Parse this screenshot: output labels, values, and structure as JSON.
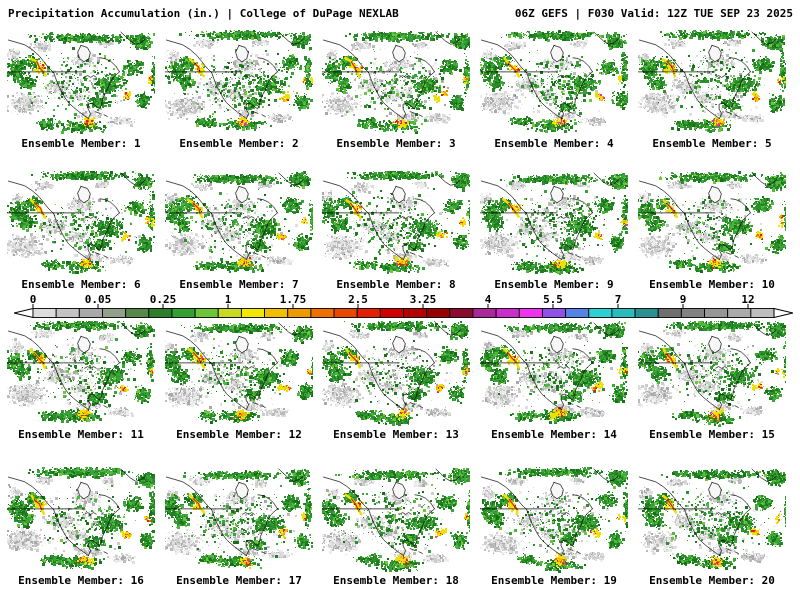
{
  "header": {
    "left": "Precipitation Accumulation (in.) | College of DuPage NEXLAB",
    "right": "06Z GEFS | F030 Valid: 12Z TUE SEP 23 2025"
  },
  "scale": {
    "labels": [
      "0",
      "0.05",
      "0.25",
      "1",
      "1.75",
      "2.5",
      "3.25",
      "4",
      "5.5",
      "7",
      "9",
      "12"
    ],
    "values": [
      0,
      0.05,
      0.25,
      1,
      1.75,
      2.5,
      3.25,
      4,
      5.5,
      7,
      9,
      12
    ],
    "colors": [
      "#dcdcdc",
      "#c3c3c3",
      "#a9a9a9",
      "#91a189",
      "#55884a",
      "#2d7d2d",
      "#33a033",
      "#70c437",
      "#cada20",
      "#f0e800",
      "#f0c000",
      "#f09800",
      "#ee7000",
      "#e84800",
      "#e02000",
      "#d00000",
      "#b40000",
      "#980000",
      "#8c0a30",
      "#aa2898",
      "#cc2ecc",
      "#ee32ee",
      "#9150e8",
      "#5584e6",
      "#2cd2d2",
      "#28bcbc",
      "#2b9090",
      "#6f6f6f",
      "#828282",
      "#969696",
      "#aaaaaa",
      "#bebebe"
    ],
    "arrow_fill": "#ffffff",
    "border": "#000000"
  },
  "map_palette": {
    "ocean": "#ffffff",
    "coast": "#000000",
    "grays": [
      "#ededed",
      "#dedede",
      "#cccccc",
      "#bbbbbb",
      "#a8a8a8"
    ],
    "greens": [
      "#167016",
      "#1f7d1f",
      "#2b8f2b",
      "#3aa33a",
      "#4eb83e",
      "#70c63c"
    ],
    "hot": [
      "#f0e000",
      "#f0b400",
      "#ee7000",
      "#e02000",
      "#e02ce0"
    ]
  },
  "members": [
    {
      "id": 1,
      "label": "Ensemble Member: 1"
    },
    {
      "id": 2,
      "label": "Ensemble Member: 2"
    },
    {
      "id": 3,
      "label": "Ensemble Member: 3"
    },
    {
      "id": 4,
      "label": "Ensemble Member: 4"
    },
    {
      "id": 5,
      "label": "Ensemble Member: 5"
    },
    {
      "id": 6,
      "label": "Ensemble Member: 6"
    },
    {
      "id": 7,
      "label": "Ensemble Member: 7"
    },
    {
      "id": 8,
      "label": "Ensemble Member: 8"
    },
    {
      "id": 9,
      "label": "Ensemble Member: 9"
    },
    {
      "id": 10,
      "label": "Ensemble Member: 10"
    },
    {
      "id": 11,
      "label": "Ensemble Member: 11"
    },
    {
      "id": 12,
      "label": "Ensemble Member: 12"
    },
    {
      "id": 13,
      "label": "Ensemble Member: 13"
    },
    {
      "id": 14,
      "label": "Ensemble Member: 14"
    },
    {
      "id": 15,
      "label": "Ensemble Member: 15"
    },
    {
      "id": 16,
      "label": "Ensemble Member: 16"
    },
    {
      "id": 17,
      "label": "Ensemble Member: 17"
    },
    {
      "id": 18,
      "label": "Ensemble Member: 18"
    },
    {
      "id": 19,
      "label": "Ensemble Member: 19"
    },
    {
      "id": 20,
      "label": "Ensemble Member: 20"
    }
  ]
}
